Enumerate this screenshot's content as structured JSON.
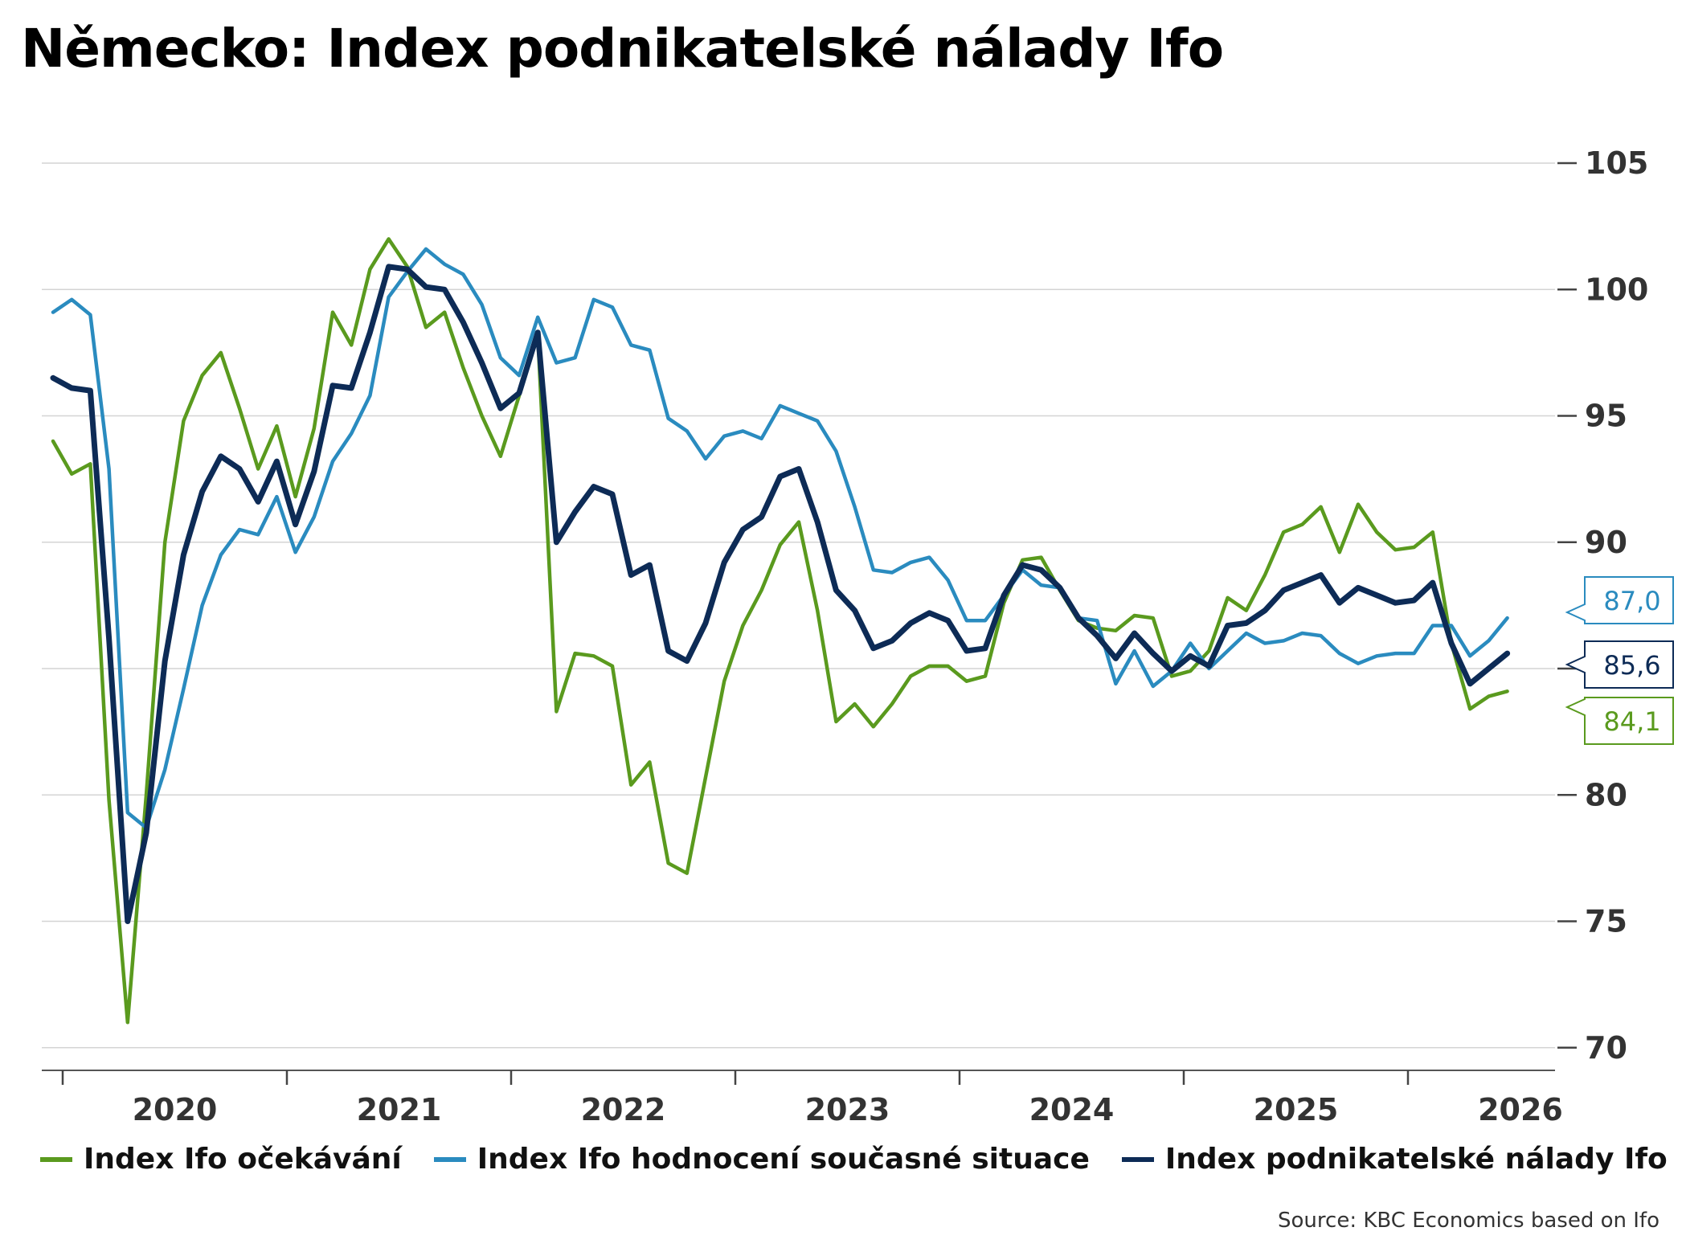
{
  "chart_data": {
    "type": "line",
    "title": "Německo: Index podnikatelské nálady Ifo",
    "source": "Source: KBC Economics based on Ifo",
    "y_ticks": [
      "105",
      "100",
      "95",
      "90",
      "85",
      "80",
      "75",
      "70"
    ],
    "y_tick_values": [
      105,
      100,
      95,
      90,
      85,
      80,
      75,
      70
    ],
    "x_ticks": [
      "2020",
      "2021",
      "2022",
      "2023",
      "2024",
      "2025",
      "2026"
    ],
    "ylim": [
      69,
      106
    ],
    "x_start_month": "2020-01",
    "grid": "horizontal",
    "legend_placement": "bottom",
    "series": [
      {
        "name": "Index Ifo očekávání",
        "color": "#5a9a1e",
        "last_value_label": "84,1",
        "values": [
          94.0,
          92.7,
          93.1,
          79.8,
          71.0,
          80.0,
          90.0,
          94.8,
          96.6,
          97.5,
          95.3,
          92.9,
          94.6,
          91.8,
          94.5,
          99.1,
          97.8,
          100.8,
          102.0,
          100.9,
          98.5,
          99.1,
          96.9,
          95.0,
          93.4,
          95.8,
          98.2,
          83.3,
          85.6,
          85.5,
          85.1,
          80.4,
          81.3,
          77.3,
          76.9,
          80.7,
          84.5,
          86.7,
          88.1,
          89.9,
          90.8,
          87.3,
          82.9,
          83.6,
          82.7,
          83.6,
          84.7,
          85.1,
          85.1,
          84.5,
          84.7,
          87.6,
          89.3,
          89.4,
          88.1,
          86.9,
          86.6,
          86.5,
          87.1,
          87.0,
          84.7,
          84.9,
          85.7,
          87.8,
          87.3,
          88.7,
          90.4,
          90.7,
          91.4,
          89.6,
          91.5,
          90.4,
          89.7,
          89.8,
          90.4,
          86.0,
          83.4,
          83.9,
          84.1
        ]
      },
      {
        "name": "Index Ifo hodnocení současné situace",
        "color": "#2a8bbf",
        "last_value_label": "87,0",
        "values": [
          99.1,
          99.6,
          99.0,
          92.9,
          79.3,
          78.7,
          81.0,
          84.2,
          87.5,
          89.5,
          90.5,
          90.3,
          91.8,
          89.6,
          91.0,
          93.2,
          94.3,
          95.8,
          99.7,
          100.7,
          101.6,
          101.0,
          100.6,
          99.4,
          97.3,
          96.6,
          98.9,
          97.1,
          97.3,
          99.6,
          99.3,
          97.8,
          97.6,
          94.9,
          94.4,
          93.3,
          94.2,
          94.4,
          94.1,
          95.4,
          95.1,
          94.8,
          93.6,
          91.4,
          88.9,
          88.8,
          89.2,
          89.4,
          88.5,
          86.9,
          86.9,
          87.9,
          88.9,
          88.3,
          88.2,
          87.0,
          86.9,
          84.4,
          85.7,
          84.3,
          84.9,
          86.0,
          85.0,
          85.7,
          86.4,
          86.0,
          86.1,
          86.4,
          86.3,
          85.6,
          85.2,
          85.5,
          85.6,
          85.6,
          86.7,
          86.7,
          85.5,
          86.1,
          87.0
        ]
      },
      {
        "name": "Index podnikatelské nálady Ifo",
        "color": "#0d2b56",
        "last_value_label": "85,6",
        "values": [
          96.5,
          96.1,
          96.0,
          86.2,
          75.0,
          78.5,
          85.3,
          89.5,
          92.0,
          93.4,
          92.9,
          91.6,
          93.2,
          90.7,
          92.8,
          96.2,
          96.1,
          98.3,
          100.9,
          100.8,
          100.1,
          100.0,
          98.7,
          97.1,
          95.3,
          95.9,
          98.3,
          90.0,
          91.2,
          92.2,
          91.9,
          88.7,
          89.1,
          85.7,
          85.3,
          86.8,
          89.2,
          90.5,
          91.0,
          92.6,
          92.9,
          90.8,
          88.1,
          87.3,
          85.8,
          86.1,
          86.8,
          87.2,
          86.9,
          85.7,
          85.8,
          87.9,
          89.1,
          88.9,
          88.2,
          87.0,
          86.3,
          85.4,
          86.4,
          85.6,
          84.9,
          85.5,
          85.1,
          86.7,
          86.8,
          87.3,
          88.1,
          88.4,
          88.7,
          87.6,
          88.2,
          87.9,
          87.6,
          87.7,
          88.4,
          86.0,
          84.4,
          85.0,
          85.6
        ]
      }
    ]
  }
}
